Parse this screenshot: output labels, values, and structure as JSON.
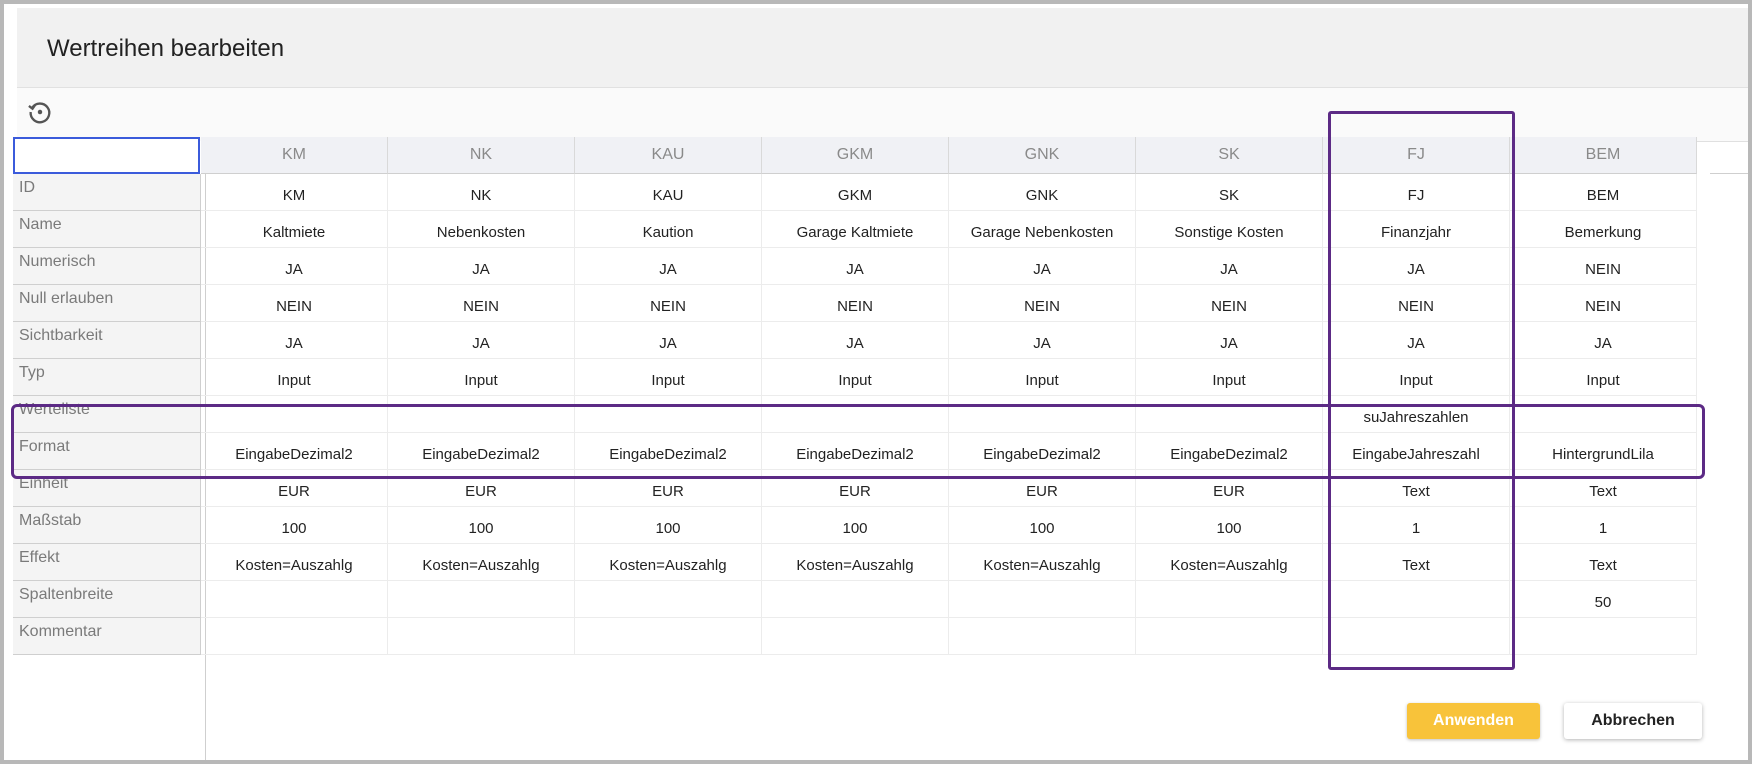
{
  "dialog": {
    "title": "Wertreihen bearbeiten"
  },
  "toolbar": {
    "reset_icon": "history-reset-icon"
  },
  "columns": [
    "KM",
    "NK",
    "KAU",
    "GKM",
    "GNK",
    "SK",
    "FJ",
    "BEM"
  ],
  "row_labels": [
    "ID",
    "Name",
    "Numerisch",
    "Null erlauben",
    "Sichtbarkeit",
    "Typ",
    "Werteliste",
    "Format",
    "Einheit",
    "Maßstab",
    "Effekt",
    "Spaltenbreite",
    "Kommentar"
  ],
  "cells": [
    [
      "KM",
      "NK",
      "KAU",
      "GKM",
      "GNK",
      "SK",
      "FJ",
      "BEM"
    ],
    [
      "Kaltmiete",
      "Nebenkosten",
      "Kaution",
      "Garage Kaltmiete",
      "Garage Nebenkosten",
      "Sonstige Kosten",
      "Finanzjahr",
      "Bemerkung"
    ],
    [
      "JA",
      "JA",
      "JA",
      "JA",
      "JA",
      "JA",
      "JA",
      "NEIN"
    ],
    [
      "NEIN",
      "NEIN",
      "NEIN",
      "NEIN",
      "NEIN",
      "NEIN",
      "NEIN",
      "NEIN"
    ],
    [
      "JA",
      "JA",
      "JA",
      "JA",
      "JA",
      "JA",
      "JA",
      "JA"
    ],
    [
      "Input",
      "Input",
      "Input",
      "Input",
      "Input",
      "Input",
      "Input",
      "Input"
    ],
    [
      "",
      "",
      "",
      "",
      "",
      "",
      "suJahreszahlen",
      ""
    ],
    [
      "EingabeDezimal2",
      "EingabeDezimal2",
      "EingabeDezimal2",
      "EingabeDezimal2",
      "EingabeDezimal2",
      "EingabeDezimal2",
      "EingabeJahreszahl",
      "HintergrundLila"
    ],
    [
      "EUR",
      "EUR",
      "EUR",
      "EUR",
      "EUR",
      "EUR",
      "Text",
      "Text"
    ],
    [
      "100",
      "100",
      "100",
      "100",
      "100",
      "100",
      "1",
      "1"
    ],
    [
      "Kosten=Auszahlg",
      "Kosten=Auszahlg",
      "Kosten=Auszahlg",
      "Kosten=Auszahlg",
      "Kosten=Auszahlg",
      "Kosten=Auszahlg",
      "Text",
      "Text"
    ],
    [
      "",
      "",
      "",
      "",
      "",
      "",
      "",
      "50"
    ],
    [
      "",
      "",
      "",
      "",
      "",
      "",
      "",
      ""
    ]
  ],
  "footer": {
    "apply_label": "Anwenden",
    "cancel_label": "Abbrechen"
  },
  "colors": {
    "accent": "#f8c33a",
    "highlight": "#5c2a85",
    "selection": "#3b5bdb"
  }
}
